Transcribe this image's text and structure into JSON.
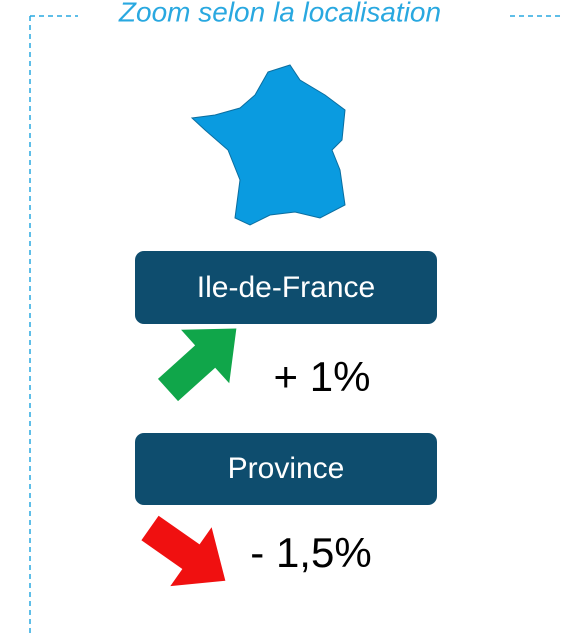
{
  "title": "Zoom selon la localisation",
  "regions": [
    {
      "label": "Ile-de-France",
      "change": "+ 1%"
    },
    {
      "label": "Province",
      "change": "- 1,5%"
    }
  ]
}
